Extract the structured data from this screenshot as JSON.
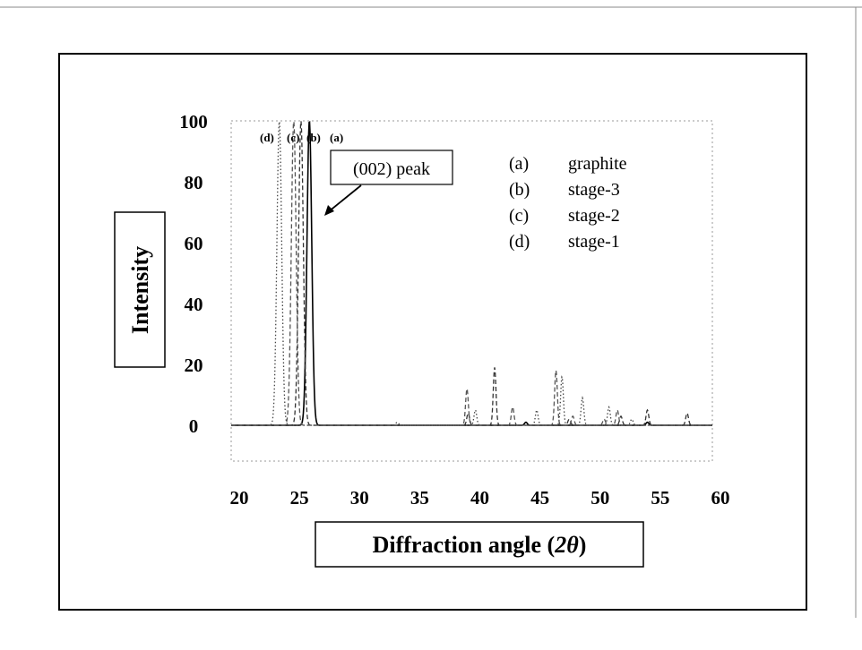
{
  "chart_data": {
    "type": "line",
    "xlabel_text": "Diffraction angle (",
    "xlabel_symbol": "2θ",
    "xlabel_close": ")",
    "ylabel": "Intensity",
    "xlim": [
      20,
      60
    ],
    "ylim": [
      0,
      100
    ],
    "x_ticks": [
      "20",
      "25",
      "30",
      "35",
      "40",
      "45",
      "50",
      "55",
      "60"
    ],
    "y_ticks": [
      "100",
      "80",
      "60",
      "40",
      "20",
      "0"
    ],
    "annotation": "(002) peak",
    "peak_labels": [
      "(d)",
      "(c)",
      "(b)",
      "(a)"
    ],
    "legend": [
      {
        "key": "(a)",
        "label": "graphite"
      },
      {
        "key": "(b)",
        "label": "stage-3"
      },
      {
        "key": "(c)",
        "label": "stage-2"
      },
      {
        "key": "(d)",
        "label": "stage-1"
      }
    ],
    "series": [
      {
        "key": "(a)",
        "name": "graphite",
        "style": "solid",
        "color": "#000000",
        "peaks": [
          {
            "x": 26.5,
            "y": 100
          },
          {
            "x": 44.5,
            "y": 1
          },
          {
            "x": 54.6,
            "y": 1
          }
        ]
      },
      {
        "key": "(b)",
        "name": "stage-3",
        "style": "dashed",
        "color": "#333333",
        "peaks": [
          {
            "x": 25.8,
            "y": 100
          },
          {
            "x": 39.7,
            "y": 4
          },
          {
            "x": 41.9,
            "y": 19
          },
          {
            "x": 48.1,
            "y": 2
          },
          {
            "x": 52.4,
            "y": 3
          },
          {
            "x": 54.6,
            "y": 5
          },
          {
            "x": 57.9,
            "y": 4
          }
        ]
      },
      {
        "key": "(c)",
        "name": "stage-2",
        "style": "dashed",
        "color": "#555555",
        "peaks": [
          {
            "x": 25.2,
            "y": 100
          },
          {
            "x": 39.6,
            "y": 12
          },
          {
            "x": 43.4,
            "y": 6
          },
          {
            "x": 47.0,
            "y": 18
          },
          {
            "x": 48.4,
            "y": 3
          },
          {
            "x": 51.0,
            "y": 2
          },
          {
            "x": 52.1,
            "y": 5
          }
        ]
      },
      {
        "key": "(d)",
        "name": "stage-1",
        "style": "dotted",
        "color": "#444444",
        "peaks": [
          {
            "x": 24.0,
            "y": 100
          },
          {
            "x": 33.8,
            "y": 1
          },
          {
            "x": 40.3,
            "y": 5
          },
          {
            "x": 45.4,
            "y": 5
          },
          {
            "x": 47.5,
            "y": 16
          },
          {
            "x": 49.2,
            "y": 9
          },
          {
            "x": 51.4,
            "y": 6
          },
          {
            "x": 53.3,
            "y": 2
          }
        ]
      }
    ]
  }
}
